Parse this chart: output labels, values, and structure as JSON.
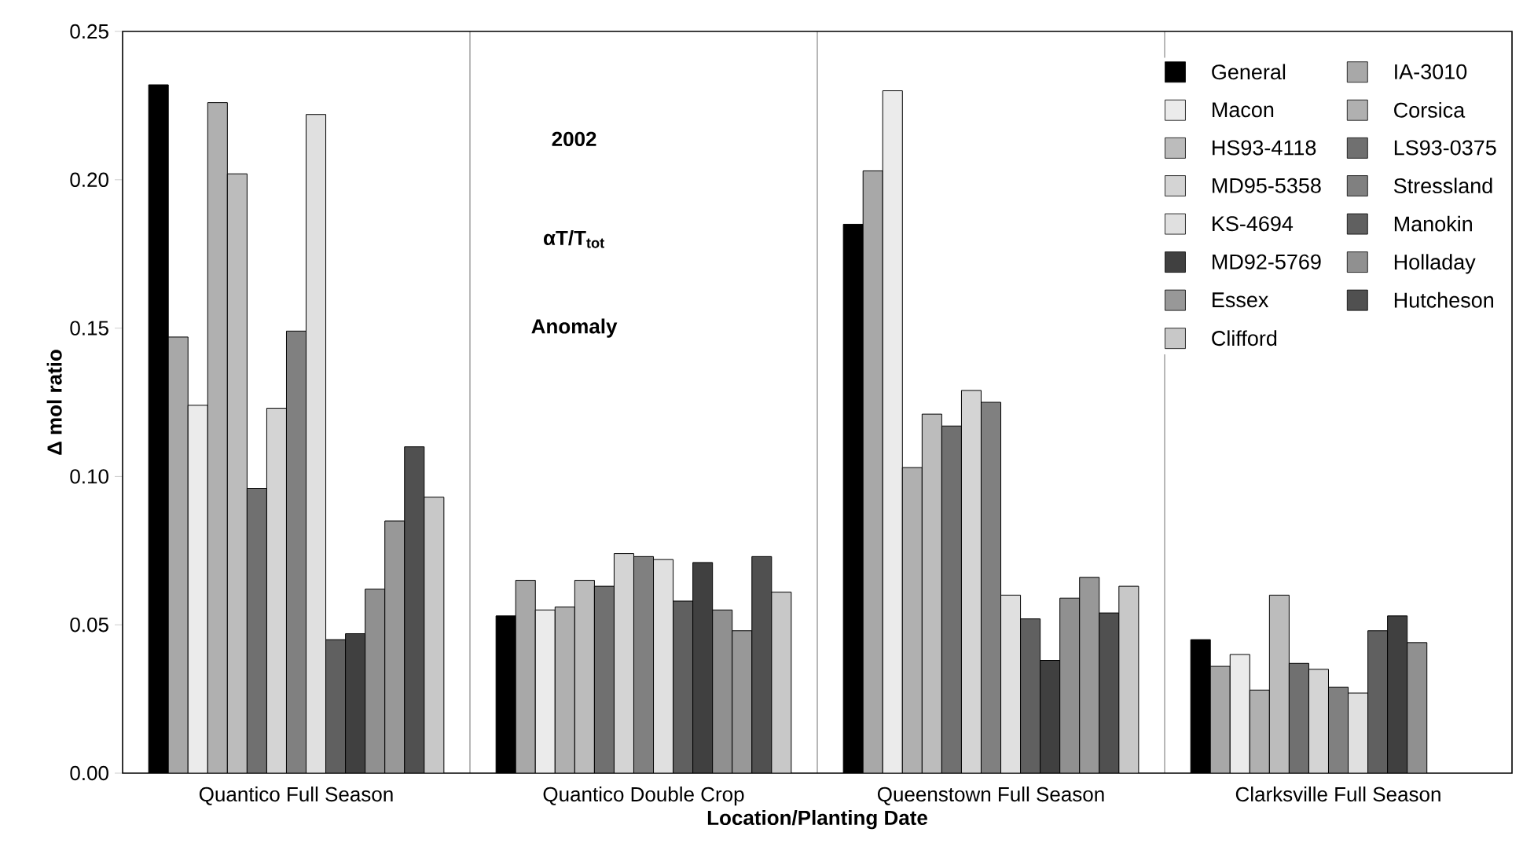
{
  "chart_data": {
    "type": "bar",
    "categories": [
      "Quantico Full Season",
      "Quantico Double Crop",
      "Queenstown Full Season",
      "Clarksville Full Season"
    ],
    "xlabel": "Location/Planting Date",
    "ylabel": "Δ mol ratio",
    "annotations": [
      "2002",
      "αT/T$_{tot}$",
      "Anomaly"
    ],
    "ylim": [
      0,
      0.25
    ],
    "yticks": [
      {
        "value": 0,
        "label": "0.00"
      },
      {
        "value": 0.05,
        "label": "0.05"
      },
      {
        "value": 0.1,
        "label": "0.10"
      },
      {
        "value": 0.15,
        "label": "0.15"
      },
      {
        "value": 0.2,
        "label": "0.20"
      },
      {
        "value": 0.25,
        "label": "0.25"
      }
    ],
    "grid": "x",
    "legend": "top right",
    "series": [
      {
        "name": "General",
        "color": "#000000",
        "values": [
          0.232,
          0.053,
          0.185,
          0.045
        ]
      },
      {
        "name": "IA-3010",
        "color": "#a8a8a8",
        "values": [
          0.147,
          0.065,
          0.203,
          0.036
        ]
      },
      {
        "name": "Macon",
        "color": "#ebebeb",
        "values": [
          0.124,
          0.055,
          0.23,
          0.04
        ]
      },
      {
        "name": "Corsica",
        "color": "#b0b0b0",
        "values": [
          0.226,
          0.056,
          0.103,
          0.028
        ]
      },
      {
        "name": "HS93-4118",
        "color": "#bcbcbc",
        "values": [
          0.202,
          0.065,
          0.121,
          0.06
        ]
      },
      {
        "name": "LS93-0375",
        "color": "#707070",
        "values": [
          0.096,
          0.063,
          0.117,
          0.037
        ]
      },
      {
        "name": "MD95-5358",
        "color": "#d4d4d4",
        "values": [
          0.123,
          0.074,
          0.129,
          0.035
        ]
      },
      {
        "name": "Stressland",
        "color": "#808080",
        "values": [
          0.149,
          0.073,
          0.125,
          0.029
        ]
      },
      {
        "name": "KS-4694",
        "color": "#e0e0e0",
        "values": [
          0.222,
          0.072,
          0.06,
          0.027
        ]
      },
      {
        "name": "Manokin",
        "color": "#606060",
        "values": [
          0.045,
          0.058,
          0.052,
          0.048
        ]
      },
      {
        "name": "MD92-5769",
        "color": "#404040",
        "values": [
          0.047,
          0.071,
          0.038,
          0.053
        ]
      },
      {
        "name": "Holladay",
        "color": "#909090",
        "values": [
          0.062,
          0.055,
          0.059,
          0.044
        ]
      },
      {
        "name": "Essex",
        "color": "#989898",
        "values": [
          0.085,
          0.048,
          0.066,
          null
        ]
      },
      {
        "name": "Hutcheson",
        "color": "#505050",
        "values": [
          0.11,
          0.073,
          0.054,
          null
        ]
      },
      {
        "name": "Clifford",
        "color": "#c8c8c8",
        "values": [
          0.093,
          0.061,
          0.063,
          null
        ]
      }
    ]
  }
}
